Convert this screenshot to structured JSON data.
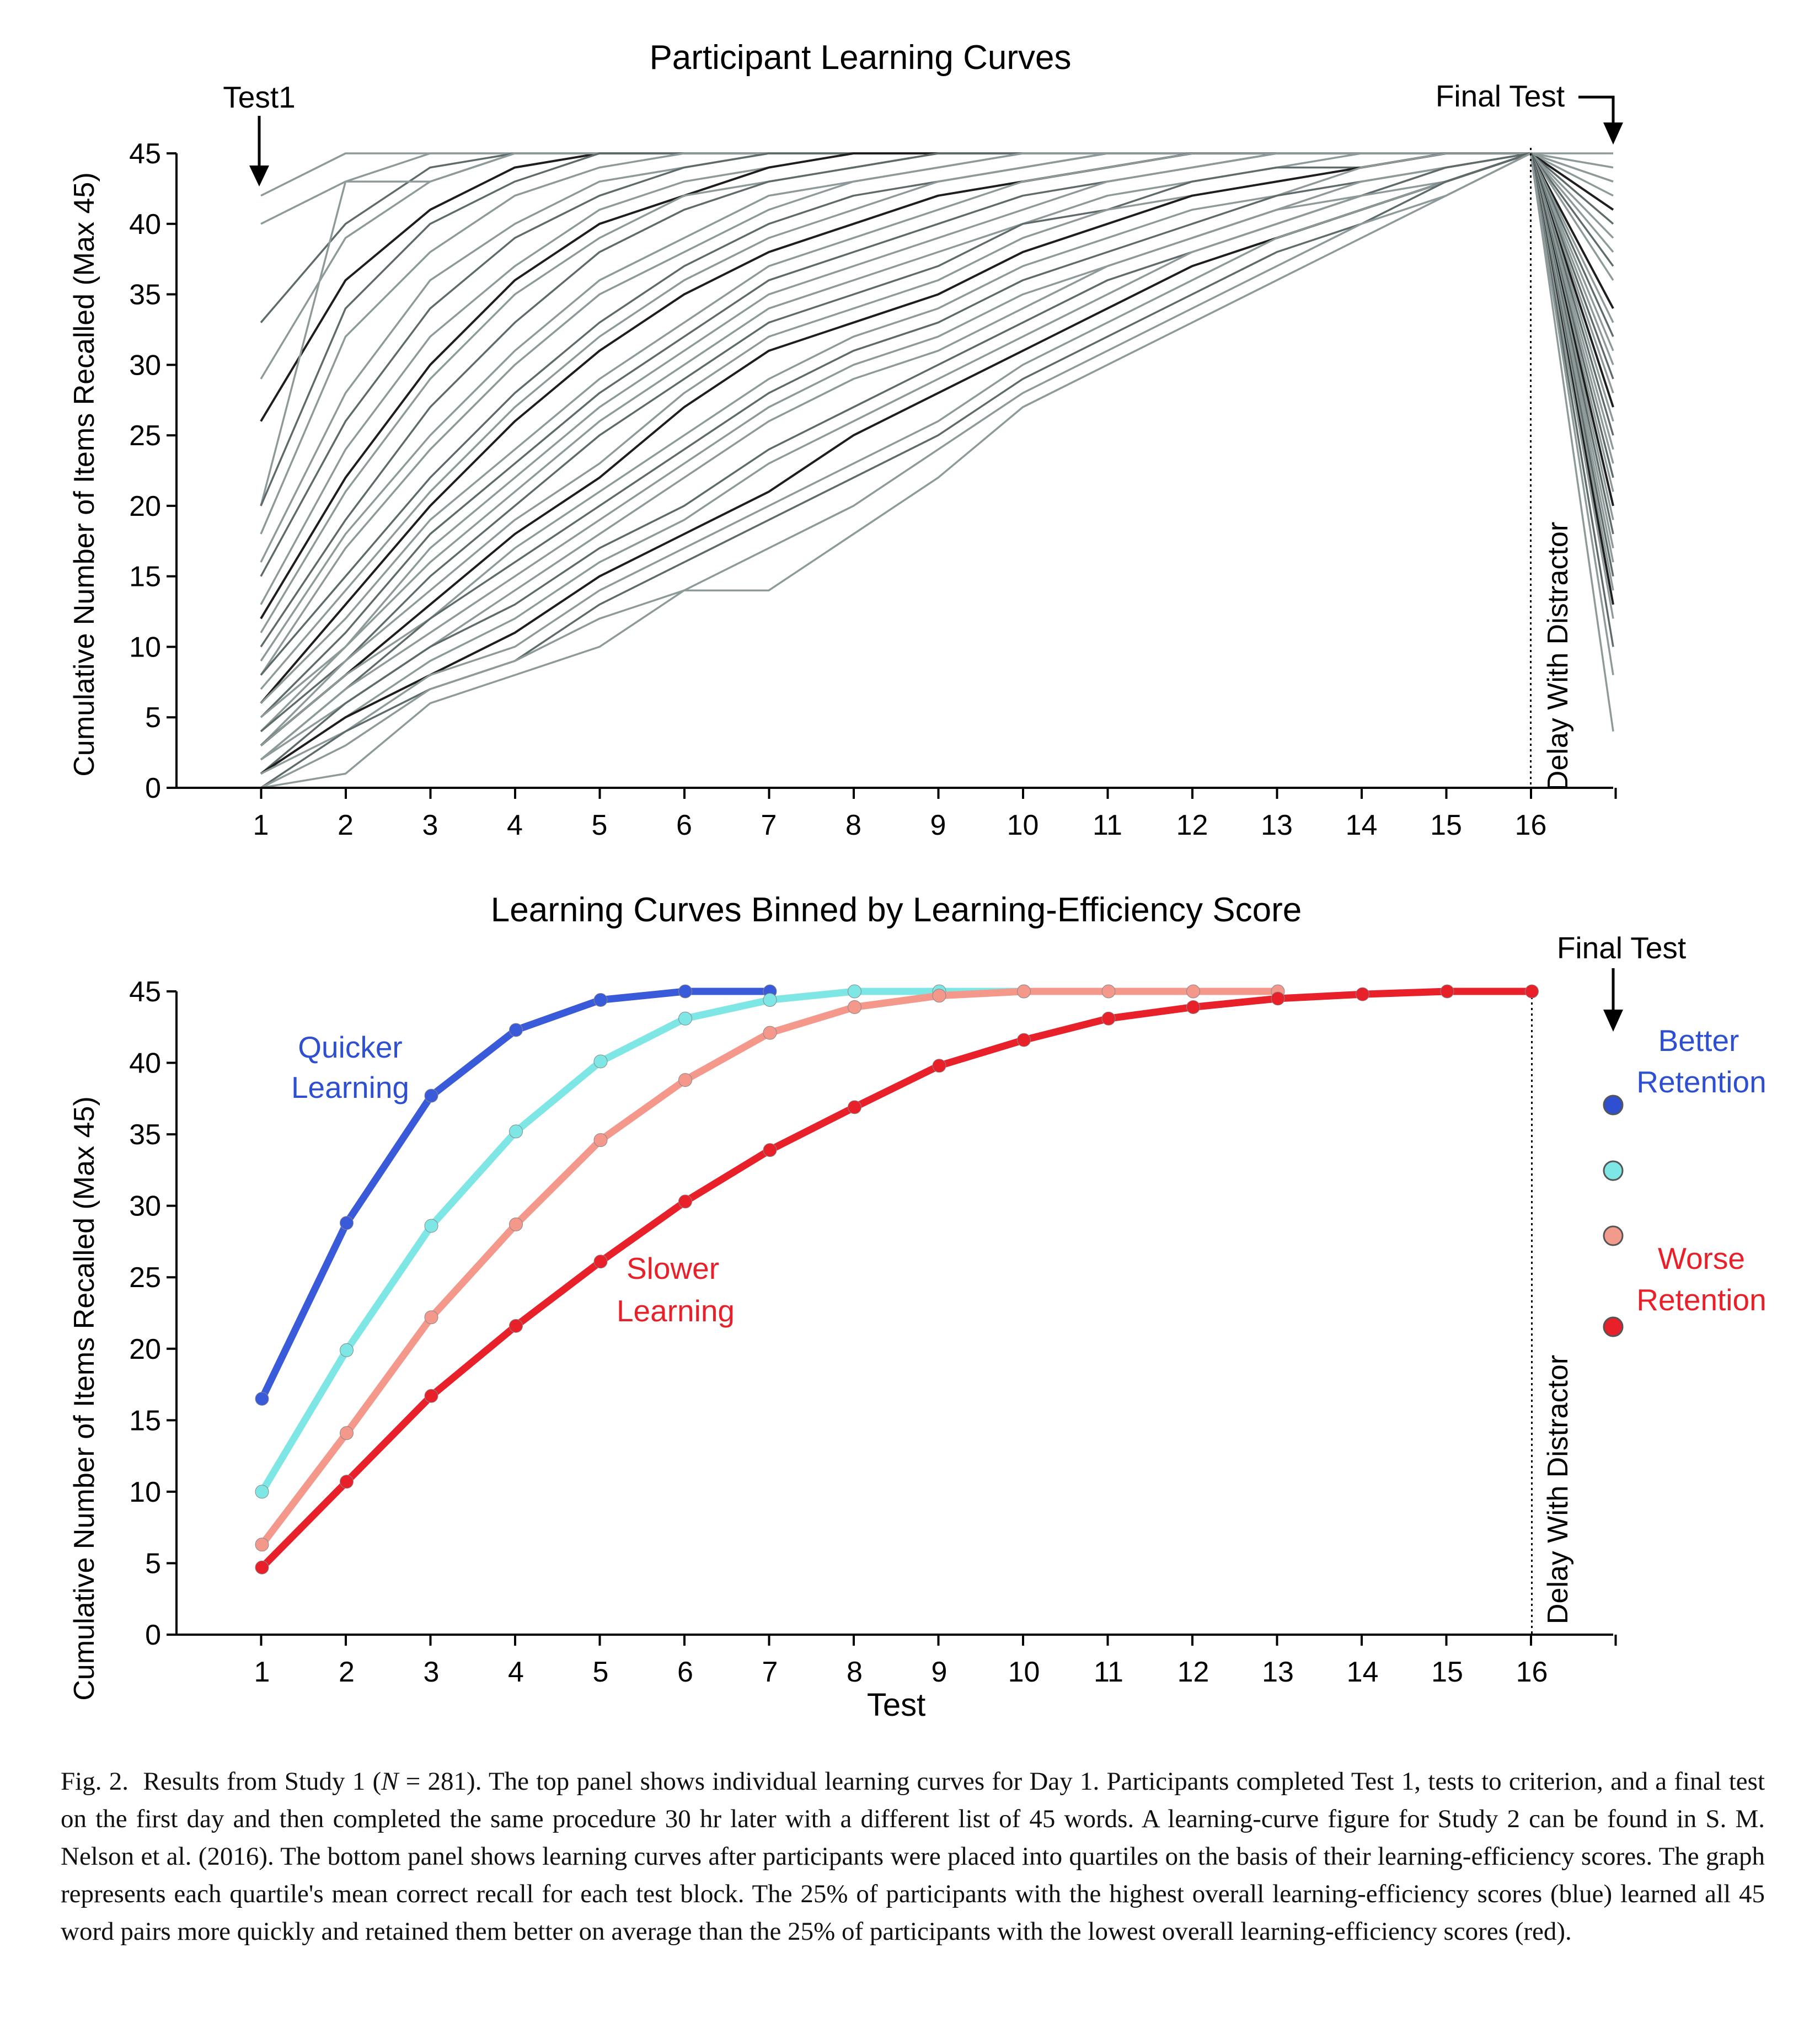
{
  "figure": {
    "caption": {
      "label": "Fig. 2.",
      "text_before_n": "Results from Study 1 (",
      "n_symbol": "N",
      "text_after_n": " = 281). The top panel shows individual learning curves for Day 1. Participants completed Test 1, tests to criterion, and a final test on the first day and then completed the same procedure 30 hr later with a different list of 45 words. A learning-curve figure for Study 2 can be found in S. M. Nelson et al. (2016). The bottom panel shows learning curves after participants were placed into quartiles on the basis of their learning-efficiency scores. The graph represents each quartile's mean correct recall for each test block. The 25% of participants with the highest overall learning-efficiency scores (blue) learned all 45 word pairs more quickly and retained them better on average than the 25% of participants with the lowest overall learning-efficiency scores (red)."
    }
  },
  "chart_data": [
    {
      "type": "line",
      "title": "Participant Learning Curves",
      "xlabel": "",
      "ylabel": "Cumulative Number of Items Recalled (Max 45)",
      "x_ticks": [
        "1",
        "2",
        "3",
        "4",
        "5",
        "6",
        "7",
        "8",
        "9",
        "10",
        "11",
        "12",
        "13",
        "14",
        "15",
        "16"
      ],
      "ylim": [
        0,
        45
      ],
      "y_ticks": [
        0,
        5,
        10,
        15,
        20,
        25,
        30,
        35,
        40,
        45
      ],
      "grid": false,
      "annotations": {
        "test1": "Test1",
        "final_test": "Final Test",
        "delay": "Delay With Distractor"
      },
      "colors": {
        "light": "#8e9a9a",
        "mid": "#5f6b6b",
        "dark": "#1e1e1e"
      },
      "series": [
        {
          "values": [
            42,
            45,
            45,
            45,
            45,
            45,
            45,
            45,
            45,
            45,
            45,
            45,
            45,
            45,
            45,
            45
          ],
          "final": 45
        },
        {
          "values": [
            40,
            43,
            45,
            45,
            45,
            45,
            45,
            45,
            45,
            45,
            45,
            45,
            45,
            45,
            45,
            45
          ],
          "final": 44
        },
        {
          "values": [
            33,
            40,
            44,
            45,
            45,
            45,
            45,
            45,
            45,
            45,
            45,
            45,
            45,
            45,
            45,
            45
          ],
          "final": 43
        },
        {
          "values": [
            29,
            39,
            43,
            45,
            45,
            45,
            45,
            45,
            45,
            45,
            45,
            45,
            45,
            45,
            45,
            45
          ],
          "final": 42
        },
        {
          "values": [
            26,
            36,
            41,
            44,
            45,
            45,
            45,
            45,
            45,
            45,
            45,
            45,
            45,
            45,
            45,
            45
          ],
          "final": 41
        },
        {
          "values": [
            20,
            43,
            43,
            45,
            45,
            45,
            45,
            45,
            45,
            45,
            45,
            45,
            45,
            45,
            45,
            45
          ],
          "final": 43
        },
        {
          "values": [
            20,
            34,
            40,
            43,
            45,
            45,
            45,
            45,
            45,
            45,
            45,
            45,
            45,
            45,
            45,
            45
          ],
          "final": 40
        },
        {
          "values": [
            18,
            32,
            38,
            42,
            44,
            45,
            45,
            45,
            45,
            45,
            45,
            45,
            45,
            45,
            45,
            45
          ],
          "final": 39
        },
        {
          "values": [
            16,
            28,
            36,
            40,
            43,
            44,
            45,
            45,
            45,
            45,
            45,
            45,
            45,
            45,
            45,
            45
          ],
          "final": 38
        },
        {
          "values": [
            15,
            26,
            34,
            39,
            42,
            44,
            45,
            45,
            45,
            45,
            45,
            45,
            45,
            45,
            45,
            45
          ],
          "final": 37
        },
        {
          "values": [
            13,
            24,
            32,
            37,
            41,
            43,
            44,
            45,
            45,
            45,
            45,
            45,
            45,
            45,
            45,
            45
          ],
          "final": 36
        },
        {
          "values": [
            12,
            22,
            30,
            36,
            40,
            42,
            44,
            45,
            45,
            45,
            45,
            45,
            45,
            45,
            45,
            45
          ],
          "final": 34
        },
        {
          "values": [
            11,
            21,
            29,
            35,
            39,
            42,
            43,
            44,
            45,
            45,
            45,
            45,
            45,
            45,
            45,
            45
          ],
          "final": 33
        },
        {
          "values": [
            10,
            19,
            27,
            33,
            38,
            41,
            43,
            44,
            45,
            45,
            45,
            45,
            45,
            45,
            45,
            45
          ],
          "final": 32
        },
        {
          "values": [
            9,
            18,
            25,
            31,
            36,
            39,
            42,
            43,
            44,
            45,
            45,
            45,
            45,
            45,
            45,
            45
          ],
          "final": 31
        },
        {
          "values": [
            8,
            17,
            24,
            30,
            35,
            38,
            41,
            43,
            44,
            45,
            45,
            45,
            45,
            45,
            45,
            45
          ],
          "final": 30
        },
        {
          "values": [
            8,
            15,
            22,
            28,
            33,
            37,
            40,
            42,
            43,
            44,
            45,
            45,
            45,
            45,
            45,
            45
          ],
          "final": 29
        },
        {
          "values": [
            7,
            14,
            21,
            27,
            32,
            36,
            39,
            41,
            43,
            44,
            45,
            45,
            45,
            45,
            45,
            45
          ],
          "final": 28
        },
        {
          "values": [
            6,
            13,
            20,
            26,
            31,
            35,
            38,
            40,
            42,
            43,
            44,
            45,
            45,
            45,
            45,
            45
          ],
          "final": 27
        },
        {
          "values": [
            6,
            12,
            19,
            24,
            29,
            33,
            37,
            39,
            41,
            43,
            44,
            45,
            45,
            45,
            45,
            45
          ],
          "final": 26
        },
        {
          "values": [
            5,
            11,
            18,
            23,
            28,
            32,
            36,
            38,
            40,
            42,
            43,
            44,
            45,
            45,
            45,
            45
          ],
          "final": 25
        },
        {
          "values": [
            5,
            10,
            17,
            22,
            27,
            31,
            35,
            37,
            39,
            41,
            43,
            44,
            45,
            45,
            45,
            45
          ],
          "final": 24
        },
        {
          "values": [
            4,
            10,
            16,
            21,
            26,
            30,
            34,
            36,
            38,
            40,
            42,
            43,
            44,
            45,
            45,
            45
          ],
          "final": 23
        },
        {
          "values": [
            4,
            9,
            15,
            20,
            25,
            29,
            33,
            35,
            37,
            40,
            41,
            43,
            44,
            44,
            45,
            45
          ],
          "final": 22
        },
        {
          "values": [
            3,
            9,
            14,
            19,
            23,
            28,
            32,
            34,
            36,
            39,
            41,
            42,
            43,
            44,
            45,
            45
          ],
          "final": 21
        },
        {
          "values": [
            3,
            8,
            13,
            18,
            22,
            27,
            31,
            33,
            35,
            38,
            40,
            42,
            43,
            44,
            45,
            45
          ],
          "final": 20
        },
        {
          "values": [
            3,
            8,
            12,
            17,
            21,
            25,
            29,
            32,
            34,
            37,
            39,
            41,
            42,
            44,
            45,
            45
          ],
          "final": 19
        },
        {
          "values": [
            2,
            7,
            12,
            16,
            20,
            24,
            28,
            31,
            33,
            36,
            38,
            40,
            42,
            43,
            44,
            45
          ],
          "final": 18
        },
        {
          "values": [
            2,
            7,
            11,
            15,
            19,
            23,
            27,
            30,
            32,
            35,
            37,
            39,
            41,
            43,
            44,
            45
          ],
          "final": 17
        },
        {
          "values": [
            2,
            6,
            10,
            14,
            18,
            22,
            26,
            29,
            31,
            34,
            37,
            39,
            41,
            42,
            44,
            45
          ],
          "final": 16
        },
        {
          "values": [
            1,
            6,
            10,
            13,
            17,
            20,
            24,
            27,
            30,
            33,
            36,
            38,
            40,
            42,
            44,
            45
          ],
          "final": 15
        },
        {
          "values": [
            1,
            5,
            9,
            12,
            16,
            19,
            23,
            26,
            29,
            32,
            35,
            38,
            40,
            42,
            43,
            45
          ],
          "final": 14
        },
        {
          "values": [
            1,
            5,
            8,
            11,
            15,
            18,
            21,
            25,
            28,
            31,
            34,
            37,
            39,
            41,
            43,
            45
          ],
          "final": 13
        },
        {
          "values": [
            1,
            4,
            8,
            10,
            14,
            17,
            20,
            23,
            26,
            30,
            33,
            36,
            39,
            41,
            43,
            45
          ],
          "final": 12
        },
        {
          "values": [
            0,
            4,
            7,
            9,
            13,
            16,
            19,
            22,
            25,
            29,
            32,
            35,
            38,
            40,
            43,
            45
          ],
          "final": 10
        },
        {
          "values": [
            0,
            3,
            7,
            9,
            12,
            14,
            17,
            20,
            24,
            28,
            31,
            34,
            37,
            40,
            42,
            45
          ],
          "final": 8
        },
        {
          "values": [
            0,
            1,
            6,
            8,
            10,
            14,
            14,
            18,
            22,
            27,
            30,
            33,
            36,
            39,
            42,
            45
          ],
          "final": 4
        }
      ]
    },
    {
      "type": "line",
      "title": "Learning Curves Binned by Learning-Efficiency Score",
      "xlabel": "Test",
      "ylabel": "Cumulative Number of Items Recalled (Max 45)",
      "x_ticks": [
        "1",
        "2",
        "3",
        "4",
        "5",
        "6",
        "7",
        "8",
        "9",
        "10",
        "11",
        "12",
        "13",
        "14",
        "15",
        "16"
      ],
      "ylim": [
        0,
        45
      ],
      "y_ticks": [
        0,
        5,
        10,
        15,
        20,
        25,
        30,
        35,
        40,
        45
      ],
      "grid": false,
      "annotations": {
        "final_test": "Final Test",
        "delay": "Delay With Distractor",
        "quicker": [
          "Quicker",
          "Learning"
        ],
        "slower": [
          "Slower",
          "Learning"
        ],
        "better": [
          "Better",
          "Retention"
        ],
        "worse": [
          "Worse",
          "Retention"
        ]
      },
      "series": [
        {
          "color": "#3a5bd9",
          "x": [
            1,
            2,
            3,
            4,
            5,
            6,
            7
          ],
          "values": [
            16.5,
            28.8,
            37.7,
            42.3,
            44.4,
            45,
            45
          ],
          "final_marker": "#2f4fd1"
        },
        {
          "color": "#7fe6e6",
          "x": [
            1,
            2,
            3,
            4,
            5,
            6,
            7,
            8,
            9,
            10
          ],
          "values": [
            10,
            19.9,
            28.6,
            35.2,
            40.1,
            43.1,
            44.4,
            45,
            45,
            45
          ],
          "final_marker": "#7fe6e6"
        },
        {
          "color": "#f4988b",
          "x": [
            1,
            2,
            3,
            4,
            5,
            6,
            7,
            8,
            9,
            10,
            11,
            12,
            13
          ],
          "values": [
            6.3,
            14.1,
            22.2,
            28.7,
            34.6,
            38.8,
            42.1,
            43.9,
            44.7,
            45,
            45,
            45,
            45
          ],
          "final_marker": "#f29a8c"
        },
        {
          "color": "#e8202a",
          "x": [
            1,
            2,
            3,
            4,
            5,
            6,
            7,
            8,
            9,
            10,
            11,
            12,
            13,
            14,
            15,
            16
          ],
          "values": [
            4.7,
            10.7,
            16.7,
            21.6,
            26.1,
            30.3,
            33.9,
            36.9,
            39.8,
            41.6,
            43.1,
            43.9,
            44.5,
            44.8,
            45,
            45
          ],
          "final_marker": "#e8202a"
        }
      ]
    }
  ]
}
